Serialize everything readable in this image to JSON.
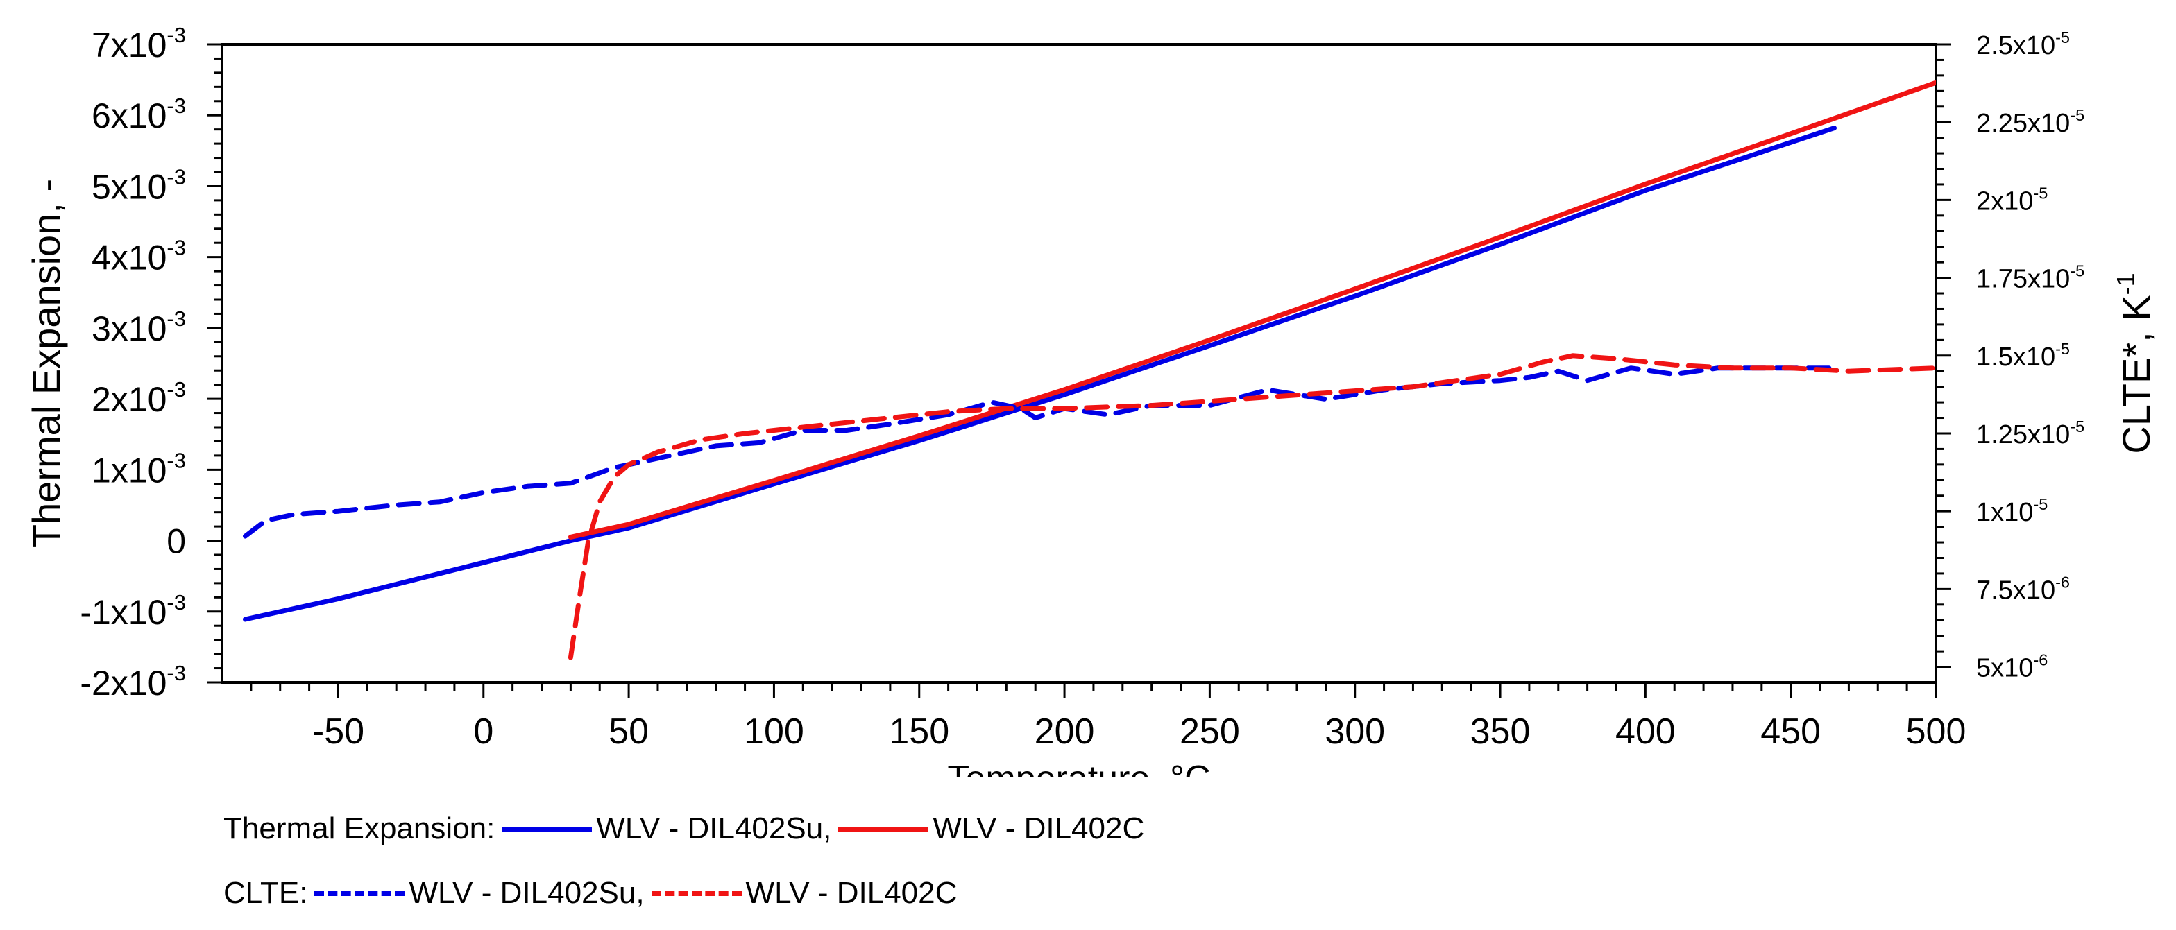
{
  "chart_data": {
    "type": "line",
    "xlabel": "Temperature, °C",
    "ylabel_left": "Thermal Expansion, -",
    "ylabel_right": {
      "base": "CLTE*, K",
      "sup": "-1"
    },
    "xlim": [
      -90,
      500
    ],
    "ylim_left": [
      -0.002,
      0.007
    ],
    "ylim_right": [
      4.5e-06,
      2.5e-05
    ],
    "x_ticks": [
      {
        "value": -50,
        "label": "-50"
      },
      {
        "value": 0,
        "label": "0"
      },
      {
        "value": 50,
        "label": "50"
      },
      {
        "value": 100,
        "label": "100"
      },
      {
        "value": 150,
        "label": "150"
      },
      {
        "value": 200,
        "label": "200"
      },
      {
        "value": 250,
        "label": "250"
      },
      {
        "value": 300,
        "label": "300"
      },
      {
        "value": 350,
        "label": "350"
      },
      {
        "value": 400,
        "label": "400"
      },
      {
        "value": 450,
        "label": "450"
      },
      {
        "value": 500,
        "label": "500"
      }
    ],
    "y_ticks_left": [
      {
        "value": 0.007,
        "base": "7x10",
        "sup": "-3"
      },
      {
        "value": 0.006,
        "base": "6x10",
        "sup": "-3"
      },
      {
        "value": 0.005,
        "base": "5x10",
        "sup": "-3"
      },
      {
        "value": 0.004,
        "base": "4x10",
        "sup": "-3"
      },
      {
        "value": 0.003,
        "base": "3x10",
        "sup": "-3"
      },
      {
        "value": 0.002,
        "base": "2x10",
        "sup": "-3"
      },
      {
        "value": 0.001,
        "base": "1x10",
        "sup": "-3"
      },
      {
        "value": 0,
        "base": "0",
        "sup": ""
      },
      {
        "value": -0.001,
        "base": "-1x10",
        "sup": "-3"
      },
      {
        "value": -0.002,
        "base": "-2x10",
        "sup": "-3"
      }
    ],
    "y_ticks_right": [
      {
        "value": 2.5e-05,
        "base": "2.5x10",
        "sup": "-5"
      },
      {
        "value": 2.25e-05,
        "base": "2.25x10",
        "sup": "-5"
      },
      {
        "value": 2e-05,
        "base": "2x10",
        "sup": "-5"
      },
      {
        "value": 1.75e-05,
        "base": "1.75x10",
        "sup": "-5"
      },
      {
        "value": 1.5e-05,
        "base": "1.5x10",
        "sup": "-5"
      },
      {
        "value": 1.25e-05,
        "base": "1.25x10",
        "sup": "-5"
      },
      {
        "value": 1e-05,
        "base": "1x10",
        "sup": "-5"
      },
      {
        "value": 7.5e-06,
        "base": "7.5x10",
        "sup": "-6"
      },
      {
        "value": 5e-06,
        "base": "5x10",
        "sup": "-6"
      }
    ],
    "series": [
      {
        "name": "WLV - DIL402Su",
        "group": "Thermal Expansion",
        "axis": "left",
        "style": "solid",
        "color": "#0000e6",
        "x": [
          -82,
          -50,
          0,
          30,
          50,
          100,
          150,
          200,
          250,
          300,
          350,
          400,
          465
        ],
        "y": [
          -0.00111,
          -0.00082,
          -0.00031,
          0.0,
          0.00018,
          0.0008,
          0.00141,
          0.00206,
          0.00275,
          0.00345,
          0.00418,
          0.00494,
          0.00582
        ]
      },
      {
        "name": "WLV - DIL402C",
        "group": "Thermal Expansion",
        "axis": "left",
        "style": "solid",
        "color": "#f01414",
        "x": [
          30,
          50,
          100,
          150,
          200,
          250,
          300,
          350,
          400,
          450,
          500
        ],
        "y": [
          5e-05,
          0.00023,
          0.00085,
          0.00148,
          0.00213,
          0.00283,
          0.00355,
          0.00428,
          0.00503,
          0.00574,
          0.00646
        ]
      },
      {
        "name": "WLV - DIL402Su",
        "group": "CLTE",
        "axis": "right",
        "style": "dashed",
        "color": "#0000e6",
        "x": [
          -82,
          -75,
          -65,
          -50,
          -30,
          -15,
          0,
          15,
          30,
          45,
          55,
          65,
          80,
          95,
          110,
          125,
          140,
          160,
          175,
          185,
          190,
          200,
          215,
          230,
          250,
          270,
          290,
          310,
          330,
          350,
          360,
          370,
          380,
          395,
          410,
          425,
          440,
          465
        ],
        "y": [
          9.2e-06,
          9.7e-06,
          9.9e-06,
          1e-05,
          1.02e-05,
          1.03e-05,
          1.06e-05,
          1.08e-05,
          1.09e-05,
          1.14e-05,
          1.16e-05,
          1.18e-05,
          1.21e-05,
          1.22e-05,
          1.26e-05,
          1.26e-05,
          1.28e-05,
          1.31e-05,
          1.35e-05,
          1.33e-05,
          1.3e-05,
          1.33e-05,
          1.31e-05,
          1.34e-05,
          1.34e-05,
          1.39e-05,
          1.36e-05,
          1.39e-05,
          1.41e-05,
          1.42e-05,
          1.43e-05,
          1.45e-05,
          1.42e-05,
          1.46e-05,
          1.44e-05,
          1.46e-05,
          1.46e-05,
          1.46e-05
        ]
      },
      {
        "name": "WLV - DIL402C",
        "group": "CLTE",
        "axis": "right",
        "style": "dashed",
        "color": "#f01414",
        "x": [
          30,
          33,
          36,
          40,
          45,
          50,
          60,
          75,
          90,
          100,
          120,
          140,
          160,
          180,
          200,
          230,
          260,
          290,
          320,
          350,
          365,
          375,
          390,
          410,
          430,
          450,
          470,
          500
        ],
        "y": [
          5.3e-06,
          7.2e-06,
          9e-06,
          1.03e-05,
          1.11e-05,
          1.15e-05,
          1.19e-05,
          1.23e-05,
          1.25e-05,
          1.26e-05,
          1.28e-05,
          1.3e-05,
          1.32e-05,
          1.33e-05,
          1.33e-05,
          1.34e-05,
          1.36e-05,
          1.38e-05,
          1.4e-05,
          1.44e-05,
          1.48e-05,
          1.5e-05,
          1.49e-05,
          1.47e-05,
          1.46e-05,
          1.46e-05,
          1.45e-05,
          1.46e-05
        ]
      }
    ]
  },
  "legend": {
    "thermal": {
      "label": "Thermal Expansion:",
      "series1": "WLV - DIL402Su,",
      "series2": "WLV - DIL402C"
    },
    "clte": {
      "label": "CLTE:",
      "series1": "WLV - DIL402Su,",
      "series2": "WLV - DIL402C"
    }
  },
  "colors": {
    "blue": "#0000e6",
    "red": "#f01414"
  }
}
